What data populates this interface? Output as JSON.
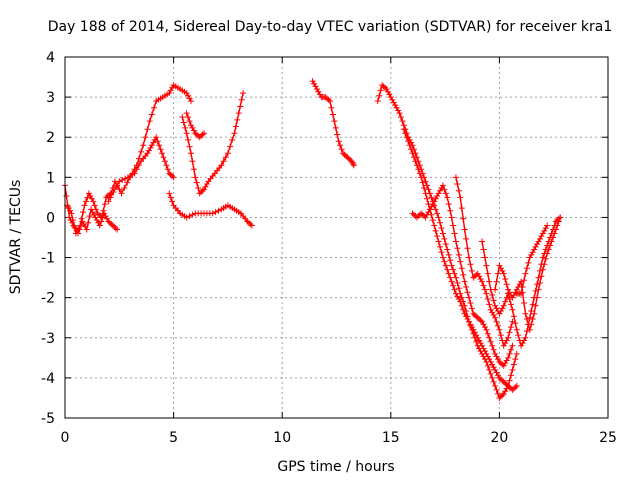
{
  "chart_data": {
    "type": "scatter",
    "title": "Day 188 of 2014, Sidereal Day-to-day VTEC variation (SDTVAR) for receiver kra1",
    "xlabel": "GPS time / hours",
    "ylabel": "SDTVAR / TECUs",
    "xlim": [
      0,
      25
    ],
    "ylim": [
      -5,
      4
    ],
    "xticks": [
      "0",
      "5",
      "10",
      "15",
      "20",
      "25"
    ],
    "yticks": [
      "-5",
      "-4",
      "-3",
      "-2",
      "-1",
      "0",
      "1",
      "2",
      "3",
      "4"
    ],
    "grid": true,
    "marker": "plus",
    "color": "#ff0000",
    "series": [
      {
        "name": "seg-a1",
        "x": [
          0.0,
          0.2,
          0.4,
          0.6,
          0.8,
          1.0,
          1.2,
          1.4,
          1.6,
          1.8,
          2.0,
          2.2,
          2.4
        ],
        "y": [
          0.8,
          0.0,
          -0.2,
          -0.4,
          -0.1,
          -0.3,
          0.2,
          0.0,
          -0.2,
          0.1,
          -0.1,
          -0.2,
          -0.3
        ]
      },
      {
        "name": "seg-a2",
        "x": [
          0.1,
          0.3,
          0.5,
          0.7,
          0.9,
          1.1,
          1.3,
          1.5,
          1.7,
          1.9,
          2.1
        ],
        "y": [
          0.3,
          0.1,
          -0.4,
          -0.2,
          0.3,
          0.6,
          0.4,
          0.1,
          0.0,
          0.5,
          0.6
        ]
      },
      {
        "name": "seg-a3",
        "x": [
          2.0,
          2.3,
          2.6,
          3.0,
          3.3,
          3.6,
          3.9,
          4.2,
          4.5,
          4.8,
          5.0,
          5.3,
          5.6,
          5.8
        ],
        "y": [
          0.4,
          0.9,
          0.6,
          1.0,
          1.3,
          1.8,
          2.4,
          2.9,
          3.0,
          3.1,
          3.3,
          3.2,
          3.1,
          2.9
        ]
      },
      {
        "name": "seg-a4",
        "x": [
          2.1,
          2.5,
          2.9,
          3.2,
          3.5,
          3.8,
          4.0,
          4.2,
          4.4,
          4.6,
          4.8,
          5.0
        ],
        "y": [
          0.5,
          0.9,
          1.0,
          1.1,
          1.4,
          1.6,
          1.8,
          2.0,
          1.7,
          1.4,
          1.1,
          1.0
        ]
      },
      {
        "name": "seg-a5",
        "x": [
          4.8,
          5.0,
          5.3,
          5.6,
          6.0,
          6.4,
          6.8,
          7.2,
          7.5,
          7.8,
          8.1,
          8.4,
          8.6
        ],
        "y": [
          0.6,
          0.3,
          0.1,
          0.0,
          0.1,
          0.1,
          0.1,
          0.2,
          0.3,
          0.2,
          0.1,
          -0.1,
          -0.2
        ]
      },
      {
        "name": "seg-a6",
        "x": [
          5.6,
          5.8,
          6.0,
          6.2,
          6.4
        ],
        "y": [
          2.6,
          2.3,
          2.1,
          2.0,
          2.1
        ]
      },
      {
        "name": "seg-a7",
        "x": [
          5.4,
          5.6,
          5.8,
          6.0,
          6.2,
          6.4,
          6.6,
          6.9,
          7.2,
          7.5,
          7.8,
          8.0,
          8.2
        ],
        "y": [
          2.5,
          2.1,
          1.6,
          1.0,
          0.6,
          0.7,
          0.9,
          1.1,
          1.3,
          1.6,
          2.1,
          2.6,
          3.1
        ]
      },
      {
        "name": "seg-b1",
        "x": [
          11.4,
          11.6,
          11.8,
          12.0,
          12.2,
          12.4,
          12.6,
          12.8,
          13.0,
          13.2,
          13.3
        ],
        "y": [
          3.4,
          3.2,
          3.0,
          3.0,
          2.9,
          2.4,
          1.9,
          1.6,
          1.5,
          1.4,
          1.3
        ]
      },
      {
        "name": "seg-c1",
        "x": [
          14.4,
          14.6,
          14.8,
          15.0,
          15.2,
          15.4,
          15.6,
          15.8,
          16.0,
          16.2,
          16.4,
          16.6,
          16.8,
          17.0,
          17.2,
          17.4,
          17.6,
          17.8,
          18.0,
          18.2,
          18.4,
          18.6,
          18.8,
          19.0,
          19.2,
          19.4,
          19.6,
          19.8,
          20.0,
          20.2,
          20.4,
          20.6,
          20.8
        ],
        "y": [
          2.9,
          3.3,
          3.2,
          3.0,
          2.8,
          2.6,
          2.3,
          2.0,
          1.8,
          1.5,
          1.2,
          0.9,
          0.6,
          0.3,
          0.0,
          -0.4,
          -0.8,
          -1.2,
          -1.5,
          -1.9,
          -2.2,
          -2.6,
          -2.9,
          -3.2,
          -3.4,
          -3.6,
          -3.9,
          -4.2,
          -4.5,
          -4.4,
          -4.2,
          -3.8,
          -3.4
        ]
      },
      {
        "name": "seg-c2",
        "x": [
          15.6,
          15.8,
          16.0,
          16.2,
          16.4,
          16.6,
          16.8,
          17.0,
          17.2,
          17.4,
          17.6,
          17.8,
          18.0,
          18.2,
          18.4,
          18.6,
          18.8,
          19.0,
          19.2,
          19.4,
          19.6,
          19.8,
          20.0,
          20.2,
          20.4,
          20.6,
          20.8
        ],
        "y": [
          2.2,
          1.9,
          1.6,
          1.3,
          1.0,
          0.6,
          0.2,
          -0.2,
          -0.6,
          -1.0,
          -1.3,
          -1.6,
          -1.9,
          -2.1,
          -2.4,
          -2.6,
          -2.8,
          -3.0,
          -3.2,
          -3.4,
          -3.6,
          -3.8,
          -4.0,
          -4.1,
          -4.2,
          -4.3,
          -4.2
        ]
      },
      {
        "name": "seg-c3",
        "x": [
          16.0,
          16.2,
          16.4,
          16.6,
          16.8,
          17.0,
          17.2,
          17.4,
          17.6,
          17.8,
          18.0,
          18.2,
          18.4,
          18.6,
          18.8,
          19.0,
          19.2,
          19.4,
          19.6,
          19.8,
          20.0,
          20.2,
          20.4,
          20.6
        ],
        "y": [
          0.1,
          0.0,
          0.1,
          0.0,
          0.2,
          0.4,
          0.6,
          0.8,
          0.5,
          0.0,
          -0.6,
          -1.1,
          -1.6,
          -2.0,
          -2.4,
          -2.5,
          -2.6,
          -2.8,
          -3.1,
          -3.4,
          -3.6,
          -3.7,
          -3.5,
          -3.2
        ]
      },
      {
        "name": "seg-c4",
        "x": [
          18.0,
          18.2,
          18.4,
          18.6,
          18.8,
          19.0,
          19.2,
          19.4,
          19.6,
          19.8,
          20.0,
          20.2,
          20.4,
          20.6
        ],
        "y": [
          1.0,
          0.5,
          -0.3,
          -1.0,
          -1.5,
          -1.4,
          -1.6,
          -1.9,
          -2.3,
          -2.5,
          -2.8,
          -3.2,
          -3.0,
          -2.6
        ]
      },
      {
        "name": "seg-c5",
        "x": [
          19.2,
          19.4,
          19.6,
          19.8,
          20.0,
          20.2,
          20.4,
          20.6,
          20.8,
          21.0,
          21.2,
          21.4,
          21.6,
          21.8,
          22.0,
          22.2,
          22.4,
          22.6,
          22.8
        ],
        "y": [
          -0.6,
          -1.2,
          -1.8,
          -2.2,
          -2.4,
          -2.2,
          -1.9,
          -2.3,
          -2.8,
          -3.2,
          -3.0,
          -2.5,
          -2.0,
          -1.5,
          -1.0,
          -0.7,
          -0.4,
          -0.1,
          0.0
        ]
      },
      {
        "name": "seg-c6",
        "x": [
          19.8,
          20.0,
          20.2,
          20.4,
          20.6,
          20.8,
          21.0,
          21.2,
          21.4,
          21.6,
          21.8,
          22.0,
          22.2,
          22.4,
          22.6,
          22.8
        ],
        "y": [
          -1.8,
          -1.2,
          -1.4,
          -1.8,
          -2.0,
          -1.8,
          -1.6,
          -2.4,
          -2.8,
          -2.4,
          -1.8,
          -1.3,
          -0.9,
          -0.6,
          -0.3,
          0.0
        ]
      },
      {
        "name": "seg-c7",
        "x": [
          20.8,
          21.0,
          21.2,
          21.4,
          21.6,
          21.8,
          22.0,
          22.2
        ],
        "y": [
          -1.9,
          -1.9,
          -1.4,
          -1.0,
          -0.8,
          -0.6,
          -0.4,
          -0.2
        ]
      }
    ]
  }
}
